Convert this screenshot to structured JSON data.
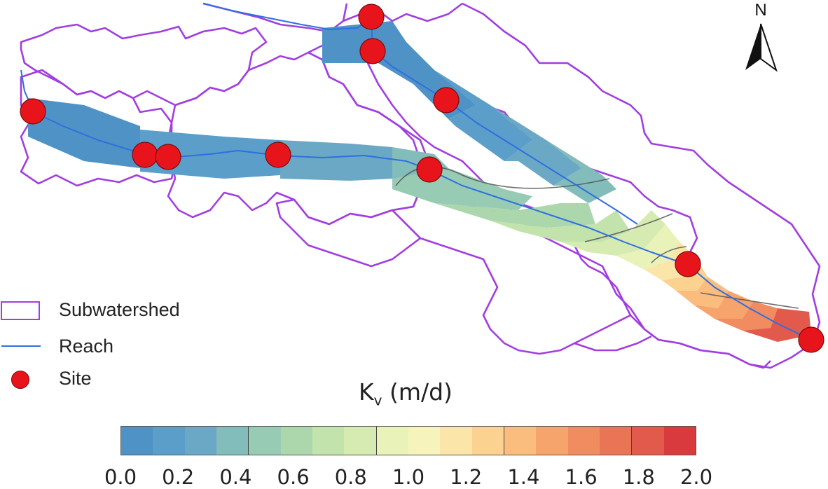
{
  "map": {
    "north_label": "N",
    "legend": [
      {
        "symbol": "polygon-outline",
        "label": "Subwatershed",
        "color": "#a23ee0"
      },
      {
        "symbol": "line",
        "label": "Reach",
        "color": "#2f6fe0"
      },
      {
        "symbol": "red-dot",
        "label": "Site",
        "color": "#e8141c"
      }
    ],
    "colorbar": {
      "title": "K",
      "title_sub": "v",
      "title_units": " (m/d)",
      "ticks": [
        "0.0",
        "0.2",
        "0.4",
        "0.6",
        "0.8",
        "1.0",
        "1.2",
        "1.4",
        "1.6",
        "1.8",
        "2.0"
      ],
      "range": [
        0.0,
        2.0
      ],
      "colors": [
        "#4f93c6",
        "#5b9ec9",
        "#6ba8c6",
        "#82bcbb",
        "#97cbb4",
        "#acd7ad",
        "#c3e3ad",
        "#d6ebb2",
        "#e9f2b8",
        "#f6f3bc",
        "#fbe5a8",
        "#fcd291",
        "#fbbd7e",
        "#f7a46c",
        "#f08c5f",
        "#ea7456",
        "#e25a4c",
        "#d93a3d"
      ]
    },
    "sites_count": 11
  }
}
